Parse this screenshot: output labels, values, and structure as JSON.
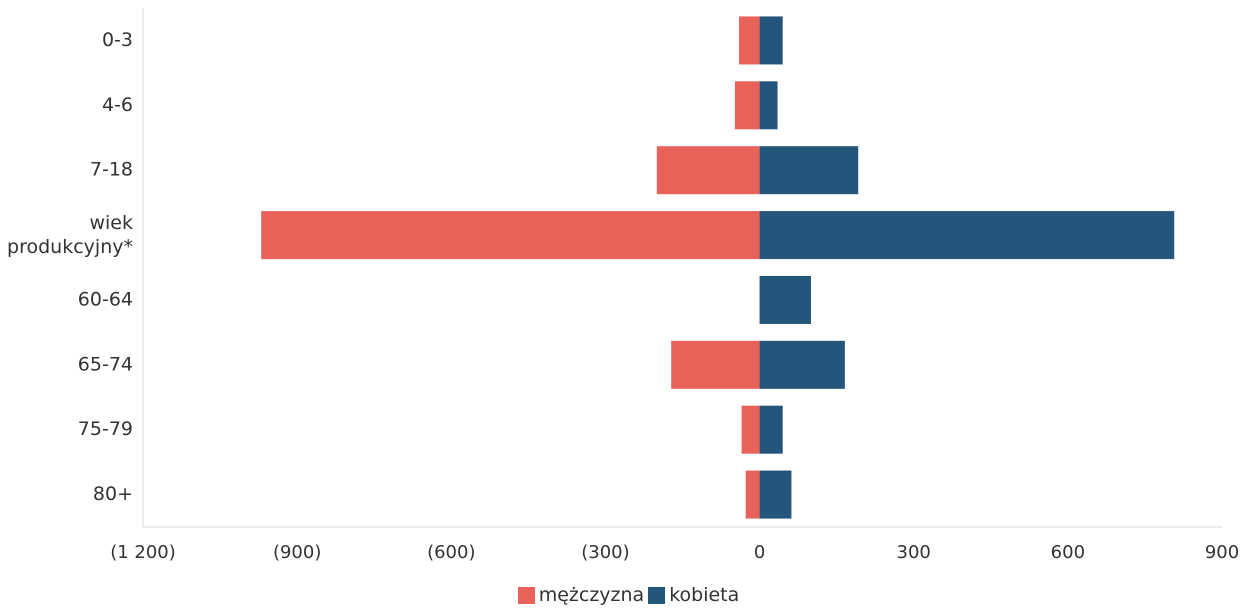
{
  "chart_data": {
    "type": "bar",
    "orientation": "horizontal",
    "stacking": "diverging",
    "categories": [
      "0-3",
      "4-6",
      "7-18",
      "wiek produkcyjny*",
      "60-64",
      "65-74",
      "75-79",
      "80+"
    ],
    "series": [
      {
        "name": "mężczyzna",
        "color": "#e8625a",
        "values": [
          -40,
          -48,
          -200,
          -970,
          0,
          -172,
          -35,
          -27
        ]
      },
      {
        "name": "kobieta",
        "color": "#24557a",
        "values": [
          45,
          35,
          192,
          807,
          100,
          166,
          45,
          62
        ]
      }
    ],
    "xlim": [
      -1200,
      900
    ],
    "xticks": [
      -1200,
      -900,
      -600,
      -300,
      0,
      300,
      600,
      900
    ],
    "xtick_labels": [
      "(1 200)",
      "(900)",
      "(600)",
      "(300)",
      "0",
      "300",
      "600",
      "900"
    ],
    "legend_position": "bottom-center",
    "grid": false
  }
}
